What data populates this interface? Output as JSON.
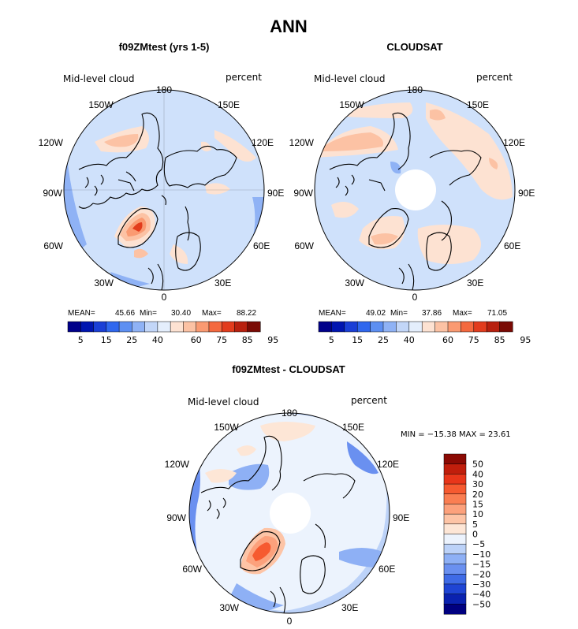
{
  "chart_data": {
    "type": "polar-contour-map",
    "title": "ANN",
    "panels": [
      {
        "name": "model",
        "subtitle": "f09ZMtest (yrs 1-5)",
        "left_label": "Mid-level cloud",
        "right_label": "percent",
        "longitude_labels": [
          "180",
          "150W",
          "150E",
          "120W",
          "120E",
          "90W",
          "90E",
          "60W",
          "60E",
          "30W",
          "30E",
          "0"
        ],
        "stats": {
          "mean_label": "MEAN=",
          "mean": "45.66",
          "min_label": "Min=",
          "min": "30.40",
          "max_label": "Max=",
          "max": "88.22"
        },
        "colorbar_ticks": [
          "5",
          "15",
          "25",
          "40",
          "60",
          "75",
          "85",
          "95"
        ],
        "colorbar_colors": [
          "#00008a",
          "#0015b0",
          "#1a3fd6",
          "#2f67ee",
          "#5d8ff2",
          "#8fb2f5",
          "#c2d6f8",
          "#e4eefc",
          "#fde2d2",
          "#fcc2a4",
          "#fa9a72",
          "#f4693f",
          "#e23c1d",
          "#b8200e",
          "#7a0a04"
        ]
      },
      {
        "name": "observations",
        "subtitle": "CLOUDSAT",
        "left_label": "Mid-level cloud",
        "right_label": "percent",
        "longitude_labels": [
          "180",
          "150W",
          "150E",
          "120W",
          "120E",
          "90W",
          "90E",
          "60W",
          "60E",
          "30W",
          "30E",
          "0"
        ],
        "stats": {
          "mean_label": "MEAN=",
          "mean": "49.02",
          "min_label": "Min=",
          "min": "37.86",
          "max_label": "Max=",
          "max": "71.05"
        },
        "colorbar_ticks": [
          "5",
          "15",
          "25",
          "40",
          "60",
          "75",
          "85",
          "95"
        ],
        "colorbar_colors": [
          "#00008a",
          "#0015b0",
          "#1a3fd6",
          "#2f67ee",
          "#5d8ff2",
          "#8fb2f5",
          "#c2d6f8",
          "#e4eefc",
          "#fde2d2",
          "#fcc2a4",
          "#fa9a72",
          "#f4693f",
          "#e23c1d",
          "#b8200e",
          "#7a0a04"
        ]
      },
      {
        "name": "difference",
        "subtitle": "f09ZMtest - CLOUDSAT",
        "left_label": "Mid-level cloud",
        "right_label": "percent",
        "longitude_labels": [
          "180",
          "150W",
          "150E",
          "120W",
          "120E",
          "90W",
          "90E",
          "60W",
          "60E",
          "30W",
          "30E",
          "0"
        ],
        "stats_text": "MIN = −15.38 MAX =   23.61",
        "colorbar_ticks": [
          "50",
          "40",
          "30",
          "20",
          "15",
          "10",
          "5",
          "0",
          "−5",
          "−10",
          "−15",
          "−20",
          "−30",
          "−40",
          "−50"
        ],
        "colorbar_colors": [
          "#8b0a04",
          "#c01e0c",
          "#e8361a",
          "#f65a30",
          "#fa7e52",
          "#fca17c",
          "#fdc4a6",
          "#fde6d6",
          "#ecf3fd",
          "#bcd2f8",
          "#8eb0f5",
          "#6a90f0",
          "#3f6be6",
          "#1f45d4",
          "#0a22b0",
          "#000080"
        ]
      }
    ]
  },
  "colors": {
    "ocean_base": "#cfe1fb",
    "light_blue": "#c2d6f8",
    "mid_blue": "#8fb2f5",
    "light_orange": "#fde2d2",
    "peach": "#fcc2a4",
    "orange": "#fa9a72",
    "red": "#e23c1d"
  }
}
